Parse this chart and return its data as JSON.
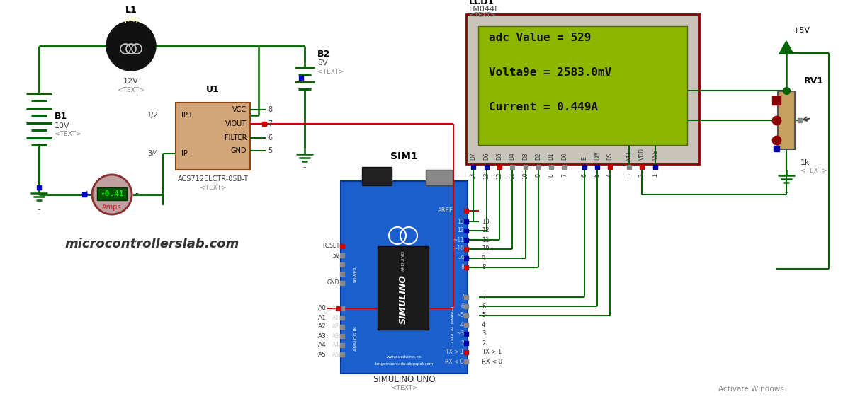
{
  "bg_color": "#ffffff",
  "watermark": "microcontrollerslab.com",
  "lcd_lines": [
    "adc Value = 529",
    "Volta9e = 2583.0mV",
    "Current = 0.449A"
  ],
  "lcd_bg": "#8db600",
  "lcd_text_color": "#111100",
  "lcd_border": "#8b0000",
  "lcd_outer_bg": "#c8c4bc",
  "battery_b1_label": "B1",
  "battery_b1_voltage": "10V",
  "battery_b2_label": "B2",
  "battery_b2_voltage": "5V",
  "inductor_label": "L1",
  "inductor_voltage": "12V",
  "ic_label": "U1",
  "ic_name": "ACS712ELCTR-05B-T",
  "ammeter_value": "-0.41",
  "ammeter_unit": "Amps",
  "arduino_label": "SIM1",
  "arduino_name": "SIMULINO UNO",
  "lcd_component_label": "LCD1",
  "lcd_model": "LM044L",
  "rv1_label": "RV1",
  "rv1_value": "1k",
  "power_label": "+5V",
  "gw": "#006400",
  "rw": "#cc0000",
  "arduino_blue": "#1a5fcc",
  "arduino_dark": "#003399"
}
